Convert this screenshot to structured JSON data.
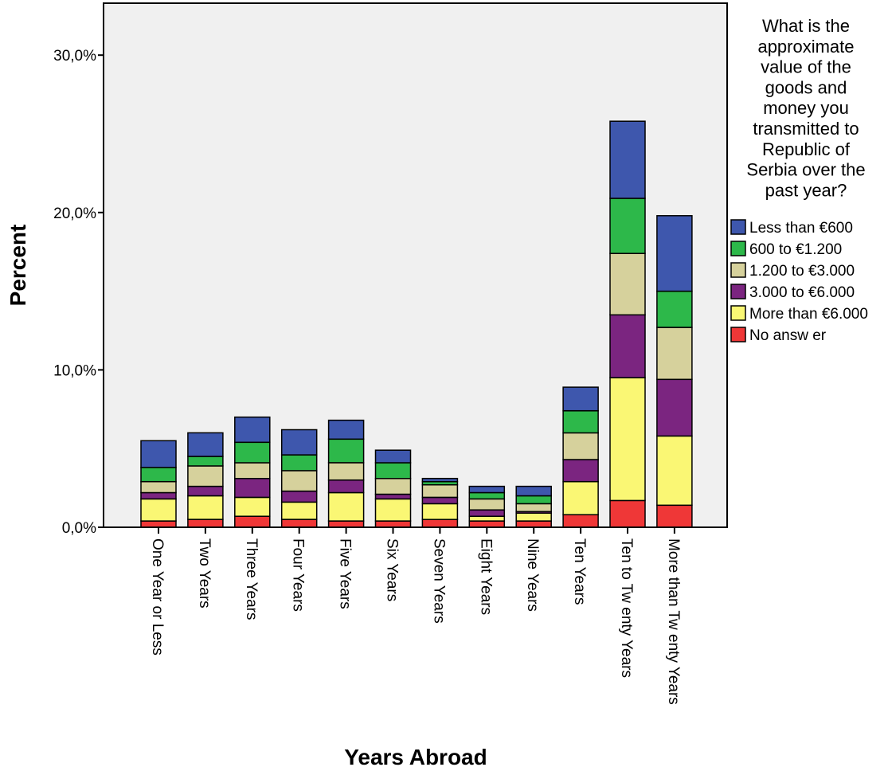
{
  "chart_data": {
    "type": "bar",
    "stacked": true,
    "xlabel": "Years Abroad",
    "ylabel": "Percent",
    "ylim": [
      0,
      33.3
    ],
    "yticks": [
      0,
      10,
      20,
      30
    ],
    "ytick_labels": [
      "0,0%",
      "10,0%",
      "20,0%",
      "30,0%"
    ],
    "grid": false,
    "plot_background": "#f0f0f0",
    "legend_position": "right",
    "legend_title": "What is the approximate value of the goods and money you transmitted to Republic of Serbia over the past year?",
    "legend_title_lines": [
      "What is the",
      "approximate",
      "value of the",
      "goods and",
      "money you",
      "transmitted to",
      "Republic of",
      "Serbia over the",
      "past year?"
    ],
    "categories": [
      "One Year or Less",
      "Two Years",
      "Three Years",
      "Four Years",
      "Five Years",
      "Six Years",
      "Seven Years",
      "Eight Years",
      "Nine Years",
      "Ten Years",
      "Ten to Twenty Years",
      "More than Twenty Years"
    ],
    "category_labels": [
      "One Year or Less",
      "Two Years",
      "Three Years",
      "Four Years",
      "Five Years",
      "Six Years",
      "Seven Years",
      "Eight Years",
      "Nine Years",
      "Ten Years",
      "Ten to Tw enty Years",
      "More than Tw enty Years"
    ],
    "series": [
      {
        "name": "No answer",
        "legend_label": "No answ er",
        "color": "#ef3737",
        "values": [
          0.4,
          0.5,
          0.7,
          0.5,
          0.4,
          0.4,
          0.5,
          0.4,
          0.4,
          0.8,
          1.7,
          1.4
        ]
      },
      {
        "name": "More than €6.000",
        "legend_label": "More than €6.000",
        "color": "#faf774",
        "values": [
          1.4,
          1.5,
          1.2,
          1.1,
          1.8,
          1.4,
          1.0,
          0.3,
          0.5,
          2.1,
          7.8,
          4.4
        ]
      },
      {
        "name": "3.000 to €6.000",
        "legend_label": " 3.000 to €6.000",
        "color": "#7b2580",
        "values": [
          0.4,
          0.6,
          1.2,
          0.7,
          0.8,
          0.3,
          0.4,
          0.4,
          0.1,
          1.4,
          4.0,
          3.6
        ]
      },
      {
        "name": "1.200 to €3.000",
        "legend_label": " 1.200 to €3.000",
        "color": "#d6d19c",
        "values": [
          0.7,
          1.3,
          1.0,
          1.3,
          1.1,
          1.0,
          0.8,
          0.7,
          0.5,
          1.7,
          3.9,
          3.3
        ]
      },
      {
        "name": "600 to €1.200",
        "legend_label": "600 to €1.200",
        "color": "#2db84a",
        "values": [
          0.9,
          0.6,
          1.3,
          1.0,
          1.5,
          1.0,
          0.2,
          0.4,
          0.5,
          1.4,
          3.5,
          2.3
        ]
      },
      {
        "name": "Less than €600",
        "legend_label": "Less than €600",
        "color": "#3e57ad",
        "values": [
          1.7,
          1.5,
          1.6,
          1.6,
          1.2,
          0.8,
          0.2,
          0.4,
          0.6,
          1.5,
          4.9,
          4.8
        ]
      }
    ]
  }
}
